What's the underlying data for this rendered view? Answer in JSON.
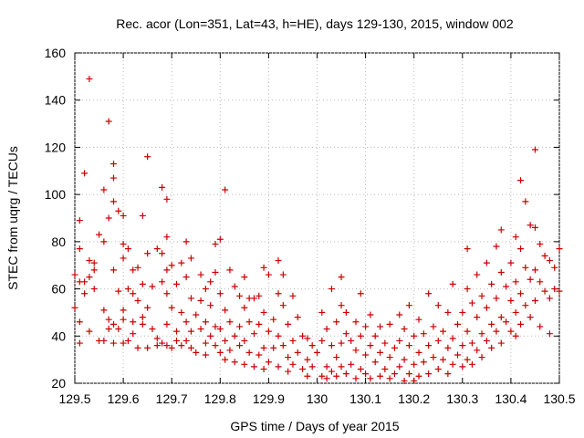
{
  "chart_data": {
    "type": "scatter",
    "title": "Rec. acor (Lon=351, Lat=43, h=HE), days 129-130, 2015, window 002",
    "xlabel": "GPS time / Days of year 2015",
    "ylabel": "STEC from uqrg / TECUs",
    "xlim": [
      129.5,
      130.5
    ],
    "ylim": [
      20,
      160
    ],
    "xticks": [
      129.5,
      129.6,
      129.7,
      129.8,
      129.9,
      130,
      130.1,
      130.2,
      130.3,
      130.4,
      130.5
    ],
    "xtick_labels": [
      "129.5",
      "129.6",
      "129.7",
      "129.8",
      "129.9",
      "130",
      "130.1",
      "130.2",
      "130.3",
      "130.4",
      "130.5"
    ],
    "yticks": [
      20,
      40,
      60,
      80,
      100,
      120,
      140,
      160
    ],
    "ytick_labels": [
      "20",
      "40",
      "60",
      "80",
      "100",
      "120",
      "140",
      "160"
    ],
    "marker": "+",
    "color": "#cc0000",
    "series": [
      {
        "name": "STEC",
        "points": [
          [
            129.5,
            66
          ],
          [
            129.5,
            52
          ],
          [
            129.51,
            63
          ],
          [
            129.51,
            46
          ],
          [
            129.51,
            37
          ],
          [
            129.51,
            77
          ],
          [
            129.51,
            89
          ],
          [
            129.52,
            109
          ],
          [
            129.52,
            58
          ],
          [
            129.52,
            63
          ],
          [
            129.53,
            149
          ],
          [
            129.53,
            72
          ],
          [
            129.53,
            65
          ],
          [
            129.53,
            42
          ],
          [
            129.54,
            68
          ],
          [
            129.54,
            60
          ],
          [
            129.54,
            71
          ],
          [
            129.55,
            83
          ],
          [
            129.55,
            38
          ],
          [
            129.56,
            102
          ],
          [
            129.56,
            80
          ],
          [
            129.56,
            51
          ],
          [
            129.56,
            38
          ],
          [
            129.57,
            131
          ],
          [
            129.57,
            90
          ],
          [
            129.57,
            47
          ],
          [
            129.57,
            43
          ],
          [
            129.58,
            113
          ],
          [
            129.58,
            107
          ],
          [
            129.58,
            97
          ],
          [
            129.58,
            68
          ],
          [
            129.58,
            45
          ],
          [
            129.58,
            37
          ],
          [
            129.59,
            93
          ],
          [
            129.59,
            59
          ],
          [
            129.59,
            43
          ],
          [
            129.6,
            91
          ],
          [
            129.6,
            79
          ],
          [
            129.6,
            73
          ],
          [
            129.6,
            51
          ],
          [
            129.6,
            47
          ],
          [
            129.6,
            37
          ],
          [
            129.61,
            77
          ],
          [
            129.61,
            60
          ],
          [
            129.61,
            38
          ],
          [
            129.62,
            68
          ],
          [
            129.62,
            58
          ],
          [
            129.62,
            46
          ],
          [
            129.62,
            41
          ],
          [
            129.63,
            69
          ],
          [
            129.63,
            55
          ],
          [
            129.63,
            35
          ],
          [
            129.64,
            91
          ],
          [
            129.64,
            62
          ],
          [
            129.64,
            48
          ],
          [
            129.64,
            45
          ],
          [
            129.65,
            116
          ],
          [
            129.65,
            75
          ],
          [
            129.65,
            52
          ],
          [
            129.65,
            35
          ],
          [
            129.66,
            61
          ],
          [
            129.66,
            43
          ],
          [
            129.67,
            77
          ],
          [
            129.67,
            39
          ],
          [
            129.67,
            36
          ],
          [
            129.68,
            103
          ],
          [
            129.68,
            75
          ],
          [
            129.68,
            63
          ],
          [
            129.68,
            37
          ],
          [
            129.69,
            98
          ],
          [
            129.69,
            82
          ],
          [
            129.69,
            68
          ],
          [
            129.69,
            58
          ],
          [
            129.69,
            45
          ],
          [
            129.69,
            36
          ],
          [
            129.7,
            70
          ],
          [
            129.7,
            52
          ],
          [
            129.7,
            35
          ],
          [
            129.71,
            62
          ],
          [
            129.71,
            42
          ],
          [
            129.71,
            38
          ],
          [
            129.72,
            71
          ],
          [
            129.72,
            50
          ],
          [
            129.72,
            36
          ],
          [
            129.73,
            80
          ],
          [
            129.73,
            65
          ],
          [
            129.73,
            46
          ],
          [
            129.73,
            38
          ],
          [
            129.74,
            73
          ],
          [
            129.74,
            56
          ],
          [
            129.74,
            42
          ],
          [
            129.74,
            35
          ],
          [
            129.75,
            49
          ],
          [
            129.75,
            33
          ],
          [
            129.76,
            66
          ],
          [
            129.76,
            55
          ],
          [
            129.76,
            43
          ],
          [
            129.77,
            60
          ],
          [
            129.77,
            46
          ],
          [
            129.77,
            37
          ],
          [
            129.77,
            32
          ],
          [
            129.78,
            63
          ],
          [
            129.78,
            53
          ],
          [
            129.78,
            40
          ],
          [
            129.79,
            79
          ],
          [
            129.79,
            67
          ],
          [
            129.79,
            44
          ],
          [
            129.79,
            36
          ],
          [
            129.8,
            81
          ],
          [
            129.8,
            58
          ],
          [
            129.8,
            43
          ],
          [
            129.8,
            33
          ],
          [
            129.81,
            102
          ],
          [
            129.81,
            51
          ],
          [
            129.81,
            38
          ],
          [
            129.81,
            30
          ],
          [
            129.82,
            68
          ],
          [
            129.82,
            46
          ],
          [
            129.82,
            34
          ],
          [
            129.83,
            61
          ],
          [
            129.83,
            40
          ],
          [
            129.83,
            29
          ],
          [
            129.84,
            57
          ],
          [
            129.84,
            44
          ],
          [
            129.84,
            36
          ],
          [
            129.85,
            65
          ],
          [
            129.85,
            52
          ],
          [
            129.85,
            38
          ],
          [
            129.85,
            28
          ],
          [
            129.86,
            56
          ],
          [
            129.86,
            46
          ],
          [
            129.86,
            33
          ],
          [
            129.87,
            56
          ],
          [
            129.87,
            41
          ],
          [
            129.87,
            27
          ],
          [
            129.88,
            57
          ],
          [
            129.88,
            45
          ],
          [
            129.88,
            32
          ],
          [
            129.89,
            69
          ],
          [
            129.89,
            50
          ],
          [
            129.89,
            35
          ],
          [
            129.89,
            26
          ],
          [
            129.9,
            66
          ],
          [
            129.9,
            42
          ],
          [
            129.9,
            29
          ],
          [
            129.91,
            47
          ],
          [
            129.91,
            35
          ],
          [
            129.92,
            72
          ],
          [
            129.92,
            58
          ],
          [
            129.92,
            40
          ],
          [
            129.92,
            27
          ],
          [
            129.93,
            66
          ],
          [
            129.93,
            53
          ],
          [
            129.93,
            36
          ],
          [
            129.94,
            45
          ],
          [
            129.94,
            31
          ],
          [
            129.94,
            25
          ],
          [
            129.95,
            57
          ],
          [
            129.95,
            38
          ],
          [
            129.95,
            28
          ],
          [
            129.96,
            48
          ],
          [
            129.96,
            33
          ],
          [
            129.97,
            40
          ],
          [
            129.97,
            26
          ],
          [
            129.98,
            39
          ],
          [
            129.98,
            30
          ],
          [
            129.98,
            23
          ],
          [
            129.99,
            36
          ],
          [
            129.99,
            27
          ],
          [
            130.0,
            33
          ],
          [
            130.01,
            50
          ],
          [
            130.01,
            38
          ],
          [
            130.01,
            23
          ],
          [
            130.02,
            43
          ],
          [
            130.02,
            27
          ],
          [
            130.02,
            22
          ],
          [
            130.03,
            60
          ],
          [
            130.03,
            36
          ],
          [
            130.03,
            25
          ],
          [
            130.04,
            46
          ],
          [
            130.04,
            31
          ],
          [
            130.04,
            23
          ],
          [
            130.05,
            65
          ],
          [
            130.05,
            53
          ],
          [
            130.05,
            37
          ],
          [
            130.05,
            27
          ],
          [
            130.06,
            50
          ],
          [
            130.06,
            41
          ],
          [
            130.06,
            24
          ],
          [
            130.07,
            38
          ],
          [
            130.07,
            28
          ],
          [
            130.08,
            46
          ],
          [
            130.08,
            34
          ],
          [
            130.08,
            22
          ],
          [
            130.09,
            58
          ],
          [
            130.09,
            40
          ],
          [
            130.09,
            26
          ],
          [
            130.1,
            44
          ],
          [
            130.1,
            32
          ],
          [
            130.1,
            24
          ],
          [
            130.11,
            49
          ],
          [
            130.11,
            36
          ],
          [
            130.11,
            22
          ],
          [
            130.12,
            40
          ],
          [
            130.12,
            29
          ],
          [
            130.13,
            44
          ],
          [
            130.13,
            33
          ],
          [
            130.13,
            23
          ],
          [
            130.14,
            37
          ],
          [
            130.14,
            26
          ],
          [
            130.15,
            45
          ],
          [
            130.15,
            31
          ],
          [
            130.15,
            22
          ],
          [
            130.16,
            35
          ],
          [
            130.16,
            24
          ],
          [
            130.17,
            49
          ],
          [
            130.17,
            38
          ],
          [
            130.17,
            27
          ],
          [
            130.18,
            43
          ],
          [
            130.18,
            30
          ],
          [
            130.18,
            21
          ],
          [
            130.19,
            53
          ],
          [
            130.19,
            36
          ],
          [
            130.19,
            24
          ],
          [
            130.2,
            40
          ],
          [
            130.2,
            28
          ],
          [
            130.2,
            21
          ],
          [
            130.21,
            47
          ],
          [
            130.21,
            33
          ],
          [
            130.21,
            23
          ],
          [
            130.22,
            41
          ],
          [
            130.22,
            29
          ],
          [
            130.23,
            58
          ],
          [
            130.23,
            36
          ],
          [
            130.23,
            24
          ],
          [
            130.24,
            44
          ],
          [
            130.24,
            31
          ],
          [
            130.25,
            53
          ],
          [
            130.25,
            38
          ],
          [
            130.25,
            26
          ],
          [
            130.26,
            42
          ],
          [
            130.26,
            30
          ],
          [
            130.27,
            50
          ],
          [
            130.27,
            35
          ],
          [
            130.27,
            24
          ],
          [
            130.28,
            62
          ],
          [
            130.28,
            39
          ],
          [
            130.28,
            28
          ],
          [
            130.29,
            45
          ],
          [
            130.29,
            32
          ],
          [
            130.3,
            50
          ],
          [
            130.3,
            36
          ],
          [
            130.3,
            27
          ],
          [
            130.31,
            77
          ],
          [
            130.31,
            60
          ],
          [
            130.31,
            42
          ],
          [
            130.31,
            30
          ],
          [
            130.32,
            54
          ],
          [
            130.32,
            37
          ],
          [
            130.32,
            28
          ],
          [
            130.33,
            66
          ],
          [
            130.33,
            48
          ],
          [
            130.33,
            34
          ],
          [
            130.34,
            57
          ],
          [
            130.34,
            41
          ],
          [
            130.34,
            31
          ],
          [
            130.35,
            71
          ],
          [
            130.35,
            52
          ],
          [
            130.35,
            38
          ],
          [
            130.36,
            62
          ],
          [
            130.36,
            45
          ],
          [
            130.36,
            35
          ],
          [
            130.37,
            78
          ],
          [
            130.37,
            56
          ],
          [
            130.37,
            42
          ],
          [
            130.38,
            85
          ],
          [
            130.38,
            67
          ],
          [
            130.38,
            48
          ],
          [
            130.38,
            37
          ],
          [
            130.39,
            61
          ],
          [
            130.39,
            46
          ],
          [
            130.4,
            71
          ],
          [
            130.4,
            55
          ],
          [
            130.4,
            42
          ],
          [
            130.41,
            82
          ],
          [
            130.41,
            63
          ],
          [
            130.41,
            50
          ],
          [
            130.41,
            40
          ],
          [
            130.42,
            106
          ],
          [
            130.42,
            77
          ],
          [
            130.42,
            58
          ],
          [
            130.42,
            45
          ],
          [
            130.43,
            97
          ],
          [
            130.43,
            69
          ],
          [
            130.43,
            53
          ],
          [
            130.44,
            87
          ],
          [
            130.44,
            64
          ],
          [
            130.44,
            48
          ],
          [
            130.45,
            119
          ],
          [
            130.45,
            86
          ],
          [
            130.45,
            68
          ],
          [
            130.45,
            55
          ],
          [
            130.46,
            79
          ],
          [
            130.46,
            63
          ],
          [
            130.46,
            44
          ],
          [
            130.47,
            74
          ],
          [
            130.47,
            59
          ],
          [
            130.48,
            72
          ],
          [
            130.48,
            56
          ],
          [
            130.48,
            41
          ],
          [
            130.49,
            69
          ],
          [
            130.49,
            60
          ],
          [
            130.5,
            77
          ],
          [
            130.5,
            59
          ]
        ]
      }
    ]
  }
}
